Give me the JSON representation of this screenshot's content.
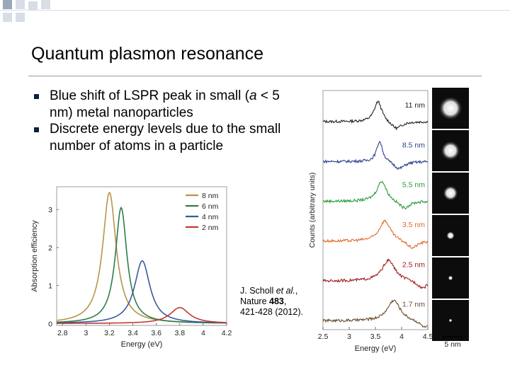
{
  "slide": {
    "title": "Quantum plasmon resonance",
    "bullets": [
      [
        "Blue shift of LSPR peak in small (",
        "a",
        " < 5 nm) metal nanoparticles"
      ],
      [
        "Discrete energy levels due to the small number of atoms in a particle"
      ]
    ],
    "citation": {
      "authors": "J. Scholl ",
      "etal": "et al.",
      "journal": ", Nature ",
      "volume": "483",
      "pages": ", 421-428 (2012)."
    }
  },
  "colors": {
    "bullet": "#0b1f44",
    "deco_dark": "#9aa8b8",
    "deco_light": "#d8dde6",
    "series_8nm": "#b8944a",
    "series_6nm": "#2e7d4a",
    "series_4nm": "#3a5a9a",
    "series_2nm": "#c23a32",
    "spec_11nm": "#222222",
    "spec_8_5nm": "#2a3f8a",
    "spec_5_5nm": "#2a9a3a",
    "spec_3_5nm": "#e06a2a",
    "spec_2_5nm": "#a01a1a",
    "spec_1_7nm": "#6b4a2a"
  },
  "chart_data": [
    {
      "type": "line",
      "xlabel": "Energy (eV)",
      "ylabel": "Absorption efficiency",
      "xlim": [
        2.75,
        4.2
      ],
      "ylim": [
        -0.05,
        3.6
      ],
      "xticks": [
        "2.8",
        "3",
        "3.2",
        "3.4",
        "3.6",
        "3.8",
        "4",
        "4.2"
      ],
      "xtick_values": [
        2.8,
        3.0,
        3.2,
        3.4,
        3.6,
        3.8,
        4.0,
        4.2
      ],
      "yticks": [
        "0",
        "1",
        "2",
        "3"
      ],
      "ytick_values": [
        0,
        1,
        2,
        3
      ],
      "legend_position": "top-right",
      "series": [
        {
          "name": "8 nm",
          "color_key": "series_8nm",
          "peak": 3.2,
          "height": 3.45,
          "width": 0.14
        },
        {
          "name": "6 nm",
          "color_key": "series_6nm",
          "peak": 3.3,
          "height": 3.05,
          "width": 0.12
        },
        {
          "name": "4 nm",
          "color_key": "series_4nm",
          "peak": 3.48,
          "height": 1.65,
          "width": 0.16
        },
        {
          "name": "2 nm",
          "color_key": "series_2nm",
          "peak": 3.8,
          "height": 0.42,
          "width": 0.2
        }
      ]
    },
    {
      "type": "line",
      "xlabel": "Energy (eV)",
      "ylabel": "Counts (arbitrary units)",
      "xlim": [
        2.5,
        4.5
      ],
      "xticks": [
        "2.5",
        "3",
        "3.5",
        "4",
        "4.5"
      ],
      "xtick_values": [
        2.5,
        3.0,
        3.5,
        4.0,
        4.5
      ],
      "series": [
        {
          "name": "11 nm",
          "color_key": "spec_11nm",
          "peak": 3.55,
          "height": 1.0,
          "width": 0.18,
          "dip": 3.9
        },
        {
          "name": "8.5 nm",
          "color_key": "spec_8_5nm",
          "peak": 3.58,
          "height": 1.0,
          "width": 0.14,
          "dip": 3.95
        },
        {
          "name": "5.5 nm",
          "color_key": "spec_5_5nm",
          "peak": 3.62,
          "height": 1.0,
          "width": 0.22,
          "dip": 4.05
        },
        {
          "name": "3.5 nm",
          "color_key": "spec_3_5nm",
          "peak": 3.68,
          "height": 1.0,
          "width": 0.26,
          "dip": 4.2
        },
        {
          "name": "2.5 nm",
          "color_key": "spec_2_5nm",
          "peak": 3.75,
          "height": 1.0,
          "width": 0.3,
          "dip": 4.4
        },
        {
          "name": "1.7 nm",
          "color_key": "spec_1_7nm",
          "peak": 3.85,
          "height": 1.0,
          "width": 0.3,
          "dip": 4.45
        }
      ]
    }
  ],
  "image_panel": {
    "sizes": [
      "11 nm",
      "8.5 nm",
      "5.5 nm",
      "3.5 nm",
      "2.5 nm",
      "1.7 nm"
    ],
    "scalebar_label": "5 nm"
  }
}
